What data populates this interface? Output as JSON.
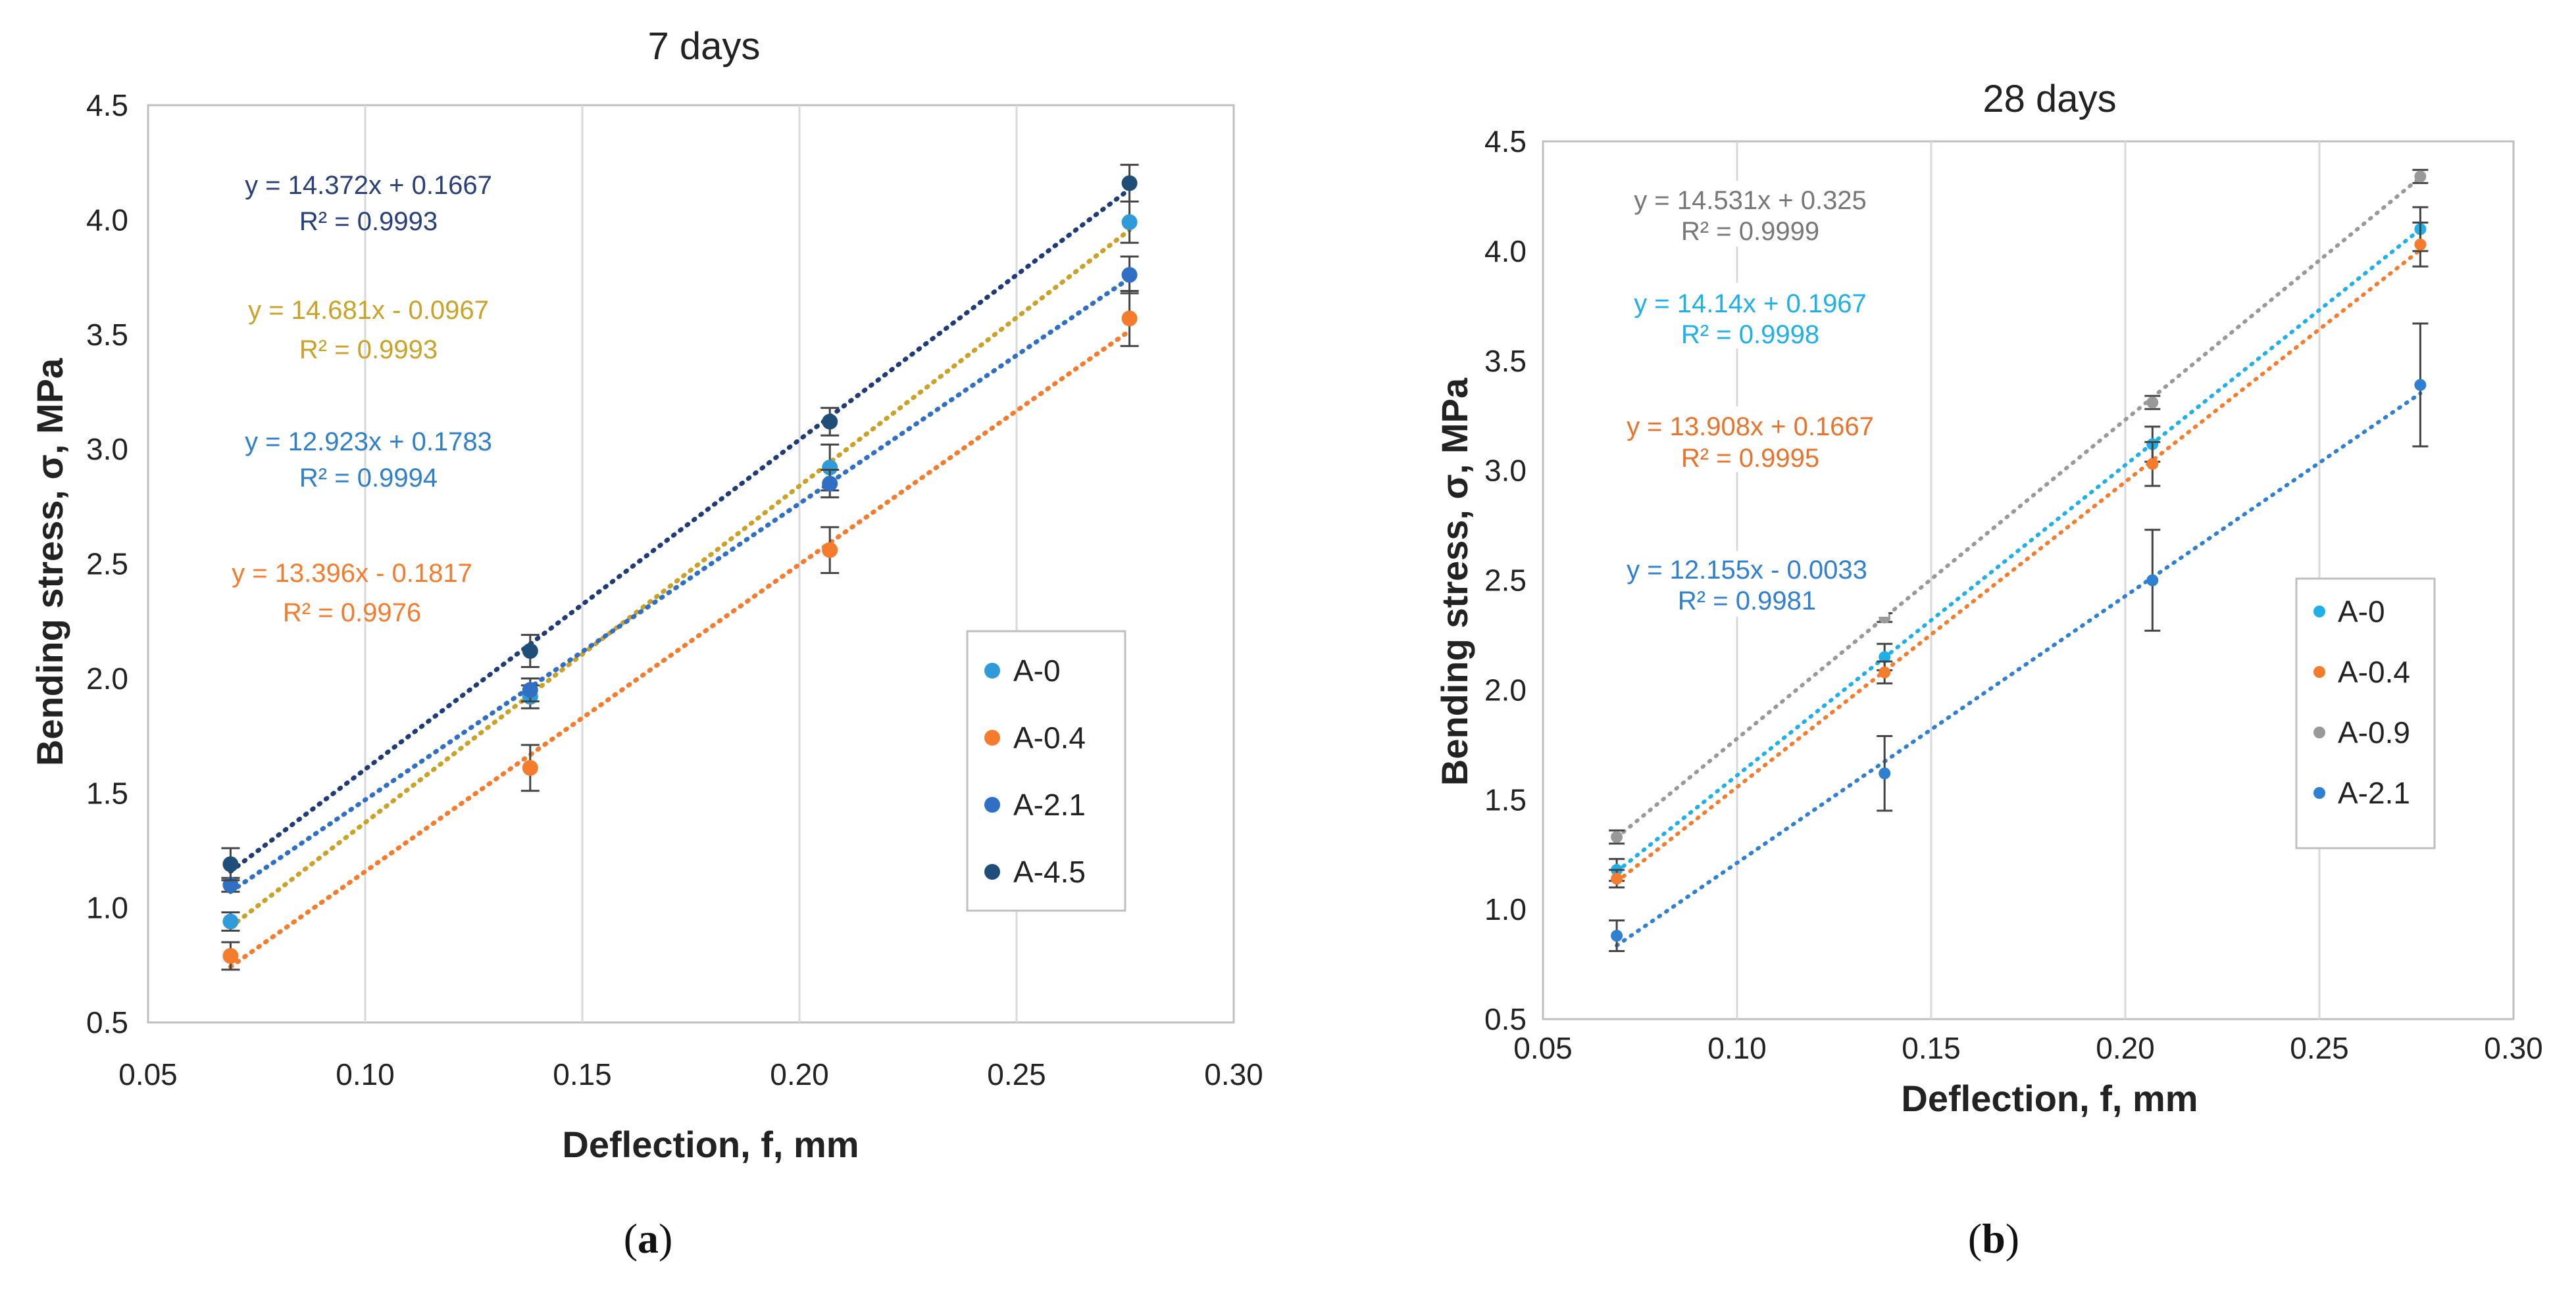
{
  "panel_labels": [
    "a",
    "b"
  ],
  "chart_data": [
    {
      "type": "scatter",
      "title": "7 days",
      "xlabel": "Deflection, f, mm",
      "ylabel": "Bending stress, σ, MPa",
      "xlim": [
        0.05,
        0.3
      ],
      "ylim": [
        0.5,
        4.5
      ],
      "xticks": [
        "0.05",
        "0.10",
        "0.15",
        "0.20",
        "0.25",
        "0.30"
      ],
      "yticks": [
        "0.5",
        "1.0",
        "1.5",
        "2.0",
        "2.5",
        "3.0",
        "3.5",
        "4.0",
        "4.5"
      ],
      "grid": "vertical",
      "legend_position": "right-middle",
      "x": [
        0.069,
        0.138,
        0.207,
        0.276
      ],
      "series": [
        {
          "name": "A-0",
          "color": "#2F9BD9",
          "values": [
            0.94,
            1.92,
            2.92,
            3.99
          ],
          "errors": [
            0.04,
            0.05,
            0.1,
            0.09
          ],
          "trend": {
            "slope": 14.681,
            "intercept": -0.0967
          },
          "trend_color": "#C9A227",
          "equation": "y = 14.681x - 0.0967",
          "r2": "R² = 0.9993",
          "label_color": "#C9A227"
        },
        {
          "name": "A-0.4",
          "color": "#F47C2C",
          "values": [
            0.79,
            1.61,
            2.56,
            3.57
          ],
          "errors": [
            0.06,
            0.1,
            0.1,
            0.12
          ],
          "trend": {
            "slope": 13.396,
            "intercept": -0.1817
          },
          "trend_color": "#F47C2C",
          "equation": "y = 13.396x - 0.1817",
          "r2": "R² = 0.9976",
          "label_color": "#F47C2C"
        },
        {
          "name": "A-2.1",
          "color": "#2F6FC4",
          "values": [
            1.1,
            1.95,
            2.85,
            3.76
          ],
          "errors": [
            0.03,
            0.05,
            0.06,
            0.08
          ],
          "trend": {
            "slope": 12.923,
            "intercept": 0.1783
          },
          "trend_color": "#2F6FC4",
          "equation": "y = 12.923x + 0.1783",
          "r2": "R² = 0.9994",
          "label_color": "#2F80C8"
        },
        {
          "name": "A-4.5",
          "color": "#1F4E79",
          "values": [
            1.19,
            2.12,
            3.12,
            4.16
          ],
          "errors": [
            0.07,
            0.07,
            0.06,
            0.08
          ],
          "trend": {
            "slope": 14.372,
            "intercept": 0.1667
          },
          "trend_color": "#1F3C78",
          "equation": "y = 14.372x + 0.1667",
          "r2": "R² = 0.9993",
          "label_color": "#27407A"
        }
      ]
    },
    {
      "type": "scatter",
      "title": "28 days",
      "xlabel": "Deflection, f, mm",
      "ylabel": "Bending stress, σ, MPa",
      "xlim": [
        0.05,
        0.3
      ],
      "ylim": [
        0.5,
        4.5
      ],
      "xticks": [
        "0.05",
        "0.10",
        "0.15",
        "0.20",
        "0.25",
        "0.30"
      ],
      "yticks": [
        "0.5",
        "1.0",
        "1.5",
        "2.0",
        "2.5",
        "3.0",
        "3.5",
        "4.0",
        "4.5"
      ],
      "grid": "vertical",
      "legend_position": "right-middle",
      "x": [
        0.069,
        0.138,
        0.207,
        0.276
      ],
      "series": [
        {
          "name": "A-0",
          "color": "#1FB0E8",
          "values": [
            1.18,
            2.15,
            3.12,
            4.1
          ],
          "errors": [
            0.05,
            0.06,
            0.08,
            0.1
          ],
          "trend": {
            "slope": 14.14,
            "intercept": 0.1967
          },
          "trend_color": "#1FB0E8",
          "equation": "y = 14.14x + 0.1967",
          "r2": "R² = 0.9998",
          "label_color": "#1FB0E8"
        },
        {
          "name": "A-0.4",
          "color": "#F47C2C",
          "values": [
            1.14,
            2.08,
            3.03,
            4.03
          ],
          "errors": [
            0.04,
            0.05,
            0.1,
            0.1
          ],
          "trend": {
            "slope": 13.908,
            "intercept": 0.1667
          },
          "trend_color": "#F47C2C",
          "equation": "y = 13.908x + 0.1667",
          "r2": "R² = 0.9995",
          "label_color": "#E8742C"
        },
        {
          "name": "A-0.9",
          "color": "#999999",
          "values": [
            1.33,
            2.33,
            3.31,
            4.34
          ],
          "errors": [
            0.03,
            0.02,
            0.03,
            0.03
          ],
          "trend": {
            "slope": 14.531,
            "intercept": 0.325
          },
          "trend_color": "#999999",
          "equation": "y = 14.531x + 0.325",
          "r2": "R² = 0.9999",
          "label_color": "#777777"
        },
        {
          "name": "A-2.1",
          "color": "#2F80D0",
          "values": [
            0.88,
            1.62,
            2.5,
            3.39
          ],
          "errors": [
            0.07,
            0.17,
            0.23,
            0.28
          ],
          "trend": {
            "slope": 12.155,
            "intercept": -0.0033
          },
          "trend_color": "#2F80D0",
          "equation": "y = 12.155x - 0.0033",
          "r2": "R² = 0.9981",
          "label_color": "#2F80D0"
        }
      ]
    }
  ]
}
